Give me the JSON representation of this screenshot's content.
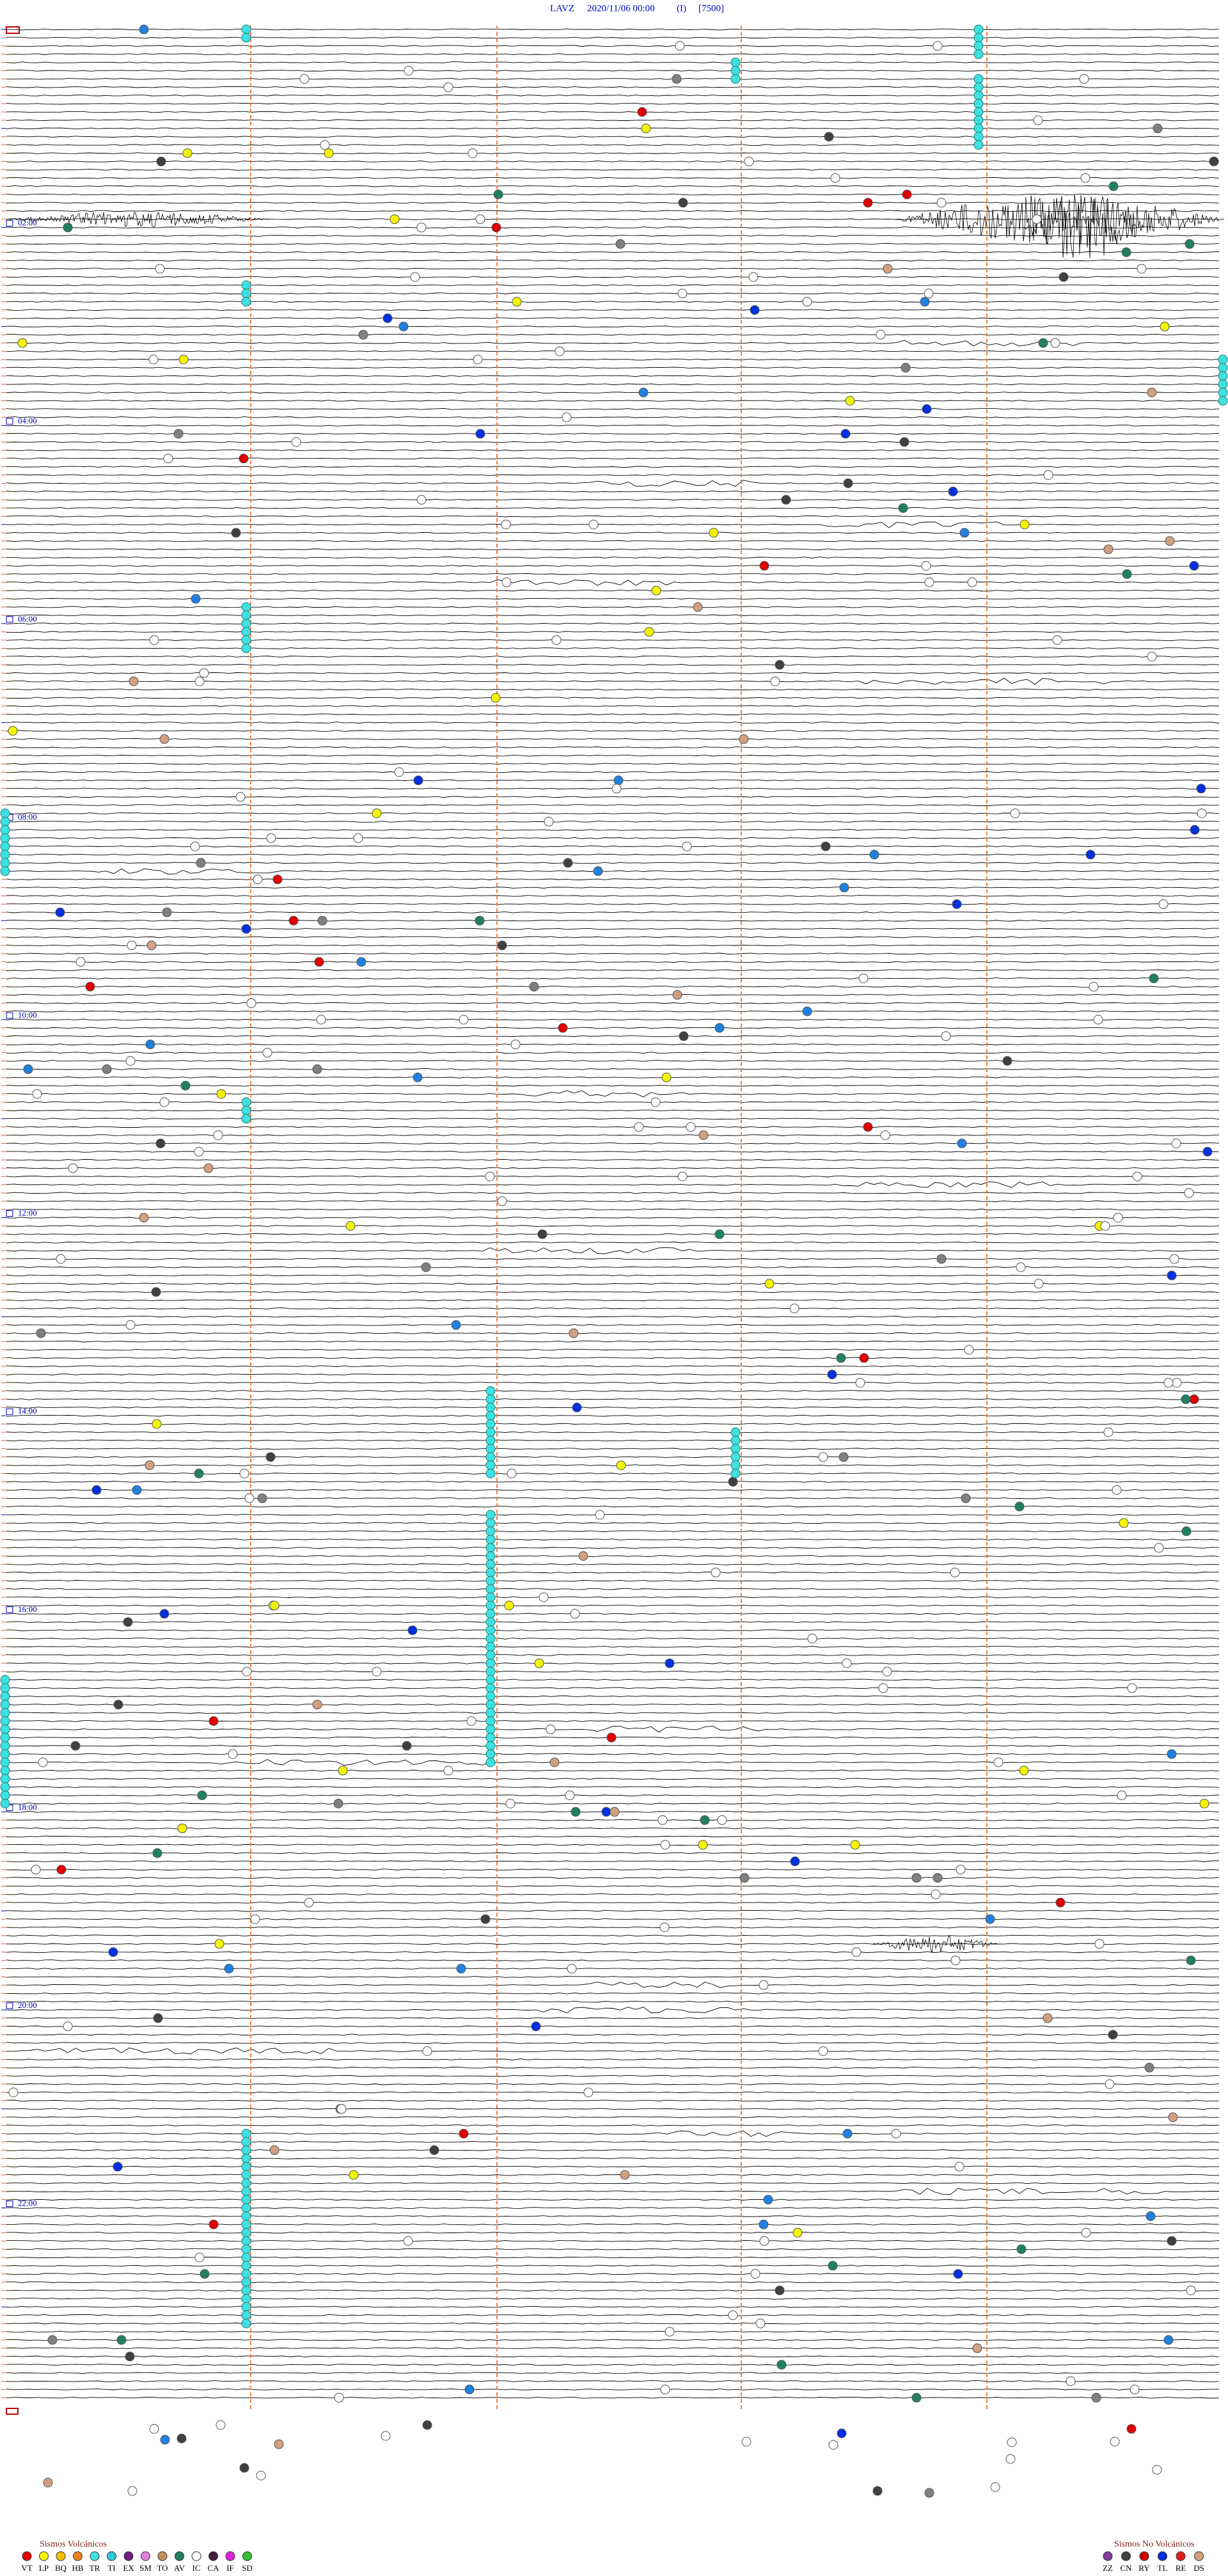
{
  "header": {
    "station": "LAVZ",
    "datetime": "2020/11/06 00:00",
    "component": "(I)",
    "scale": "[7500]"
  },
  "hour_labels": [
    "02:00",
    "04:00",
    "06:00",
    "08:00",
    "10:00",
    "12:00",
    "14:00",
    "16:00",
    "18:00",
    "20:00",
    "22:00"
  ],
  "legend_volcanic": {
    "title": "Sismos Volcánicos",
    "items": [
      {
        "code": "VT",
        "color": "#e00000"
      },
      {
        "code": "LP",
        "color": "#f5f500"
      },
      {
        "code": "BQ",
        "color": "#f0c000"
      },
      {
        "code": "HB",
        "color": "#f08020"
      },
      {
        "code": "TR",
        "color": "#40e0e0"
      },
      {
        "code": "TI",
        "color": "#30c8d8"
      },
      {
        "code": "EX",
        "color": "#702080"
      },
      {
        "code": "SM",
        "color": "#e080e0"
      },
      {
        "code": "TO",
        "color": "#c09060"
      },
      {
        "code": "AV",
        "color": "#208060"
      },
      {
        "code": "IC",
        "color": "#ffffff"
      },
      {
        "code": "CA",
        "color": "#402040"
      },
      {
        "code": "IF",
        "color": "#e020e0"
      },
      {
        "code": "SD",
        "color": "#30c030"
      }
    ]
  },
  "legend_non_volcanic": {
    "title": "Sismos No Volcánicos",
    "items": [
      {
        "code": "ZZ",
        "color": "#8040a0"
      },
      {
        "code": "CN",
        "color": "#404040"
      },
      {
        "code": "RY",
        "color": "#d00000"
      },
      {
        "code": "TL",
        "color": "#0030e0"
      },
      {
        "code": "RE",
        "color": "#e02020"
      },
      {
        "code": "DS",
        "color": "#d0a080"
      }
    ]
  }
}
